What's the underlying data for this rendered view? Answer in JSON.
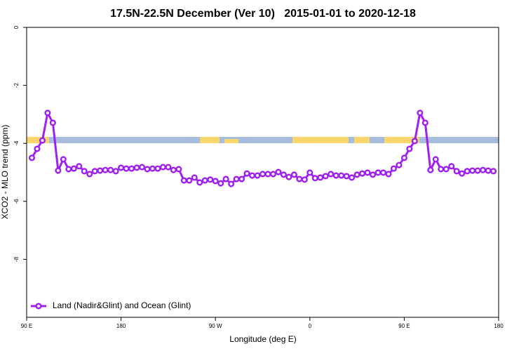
{
  "chart_data": {
    "type": "line",
    "title": "17.5N-22.5N December (Ver 10)   2015-01-01 to 2020-12-18",
    "xlabel": "Longitude (deg E)",
    "ylabel": "XCO2 - MLO trend (ppm)",
    "x": [
      95,
      100,
      105,
      110,
      115,
      120,
      125,
      130,
      135,
      140,
      145,
      150,
      155,
      160,
      165,
      170,
      175,
      180,
      185,
      190,
      195,
      200,
      205,
      210,
      215,
      220,
      225,
      230,
      235,
      240,
      245,
      250,
      255,
      260,
      265,
      270,
      275,
      280,
      285,
      290,
      295,
      300,
      305,
      310,
      315,
      320,
      325,
      330,
      335,
      340,
      345,
      350,
      355,
      360,
      365,
      370,
      375,
      380,
      385,
      390,
      395,
      400,
      405,
      410,
      415,
      420,
      425,
      430,
      435,
      440,
      445,
      450,
      455,
      460,
      465,
      470,
      475,
      480,
      485,
      490,
      495,
      500,
      505,
      510,
      515,
      520,
      525,
      530,
      535
    ],
    "series": [
      {
        "name": "Land (Nadir&Glint) and Ocean (Glint)",
        "color": "#a020f0",
        "values": [
          -4.5,
          -4.19,
          -3.9,
          -2.95,
          -3.29,
          -4.94,
          -4.55,
          -4.89,
          -4.87,
          -4.79,
          -4.96,
          -5.06,
          -4.96,
          -4.94,
          -4.92,
          -4.92,
          -4.96,
          -4.84,
          -4.87,
          -4.87,
          -4.84,
          -4.82,
          -4.89,
          -4.87,
          -4.87,
          -4.82,
          -4.82,
          -4.92,
          -4.89,
          -5.28,
          -5.28,
          -5.18,
          -5.35,
          -5.28,
          -5.25,
          -5.3,
          -5.38,
          -5.23,
          -5.4,
          -5.23,
          -5.23,
          -5.04,
          -5.11,
          -5.11,
          -5.06,
          -5.06,
          -5.06,
          -4.99,
          -5.08,
          -5.16,
          -5.08,
          -5.23,
          -5.25,
          -5.01,
          -5.2,
          -5.18,
          -5.13,
          -5.06,
          -5.11,
          -5.11,
          -5.13,
          -5.18,
          -5.08,
          -5.04,
          -5.01,
          -5.08,
          -5.01,
          -5.01,
          -5.06,
          -4.87,
          -4.75,
          -4.5,
          -4.19,
          -3.92,
          -2.95,
          -3.29,
          -4.92,
          -4.55,
          -4.89,
          -4.89,
          -4.79,
          -4.96,
          -5.04,
          -4.96,
          -4.94,
          -4.94,
          -4.92,
          -4.94,
          -4.96
        ]
      }
    ],
    "xlim": [
      90,
      540
    ],
    "xticks": [
      {
        "value": 90,
        "label": "90 E"
      },
      180,
      {
        "value": 270,
        "label": "90 W"
      },
      {
        "value": 360,
        "label": "0"
      },
      {
        "value": 450,
        "label": "90 E"
      },
      {
        "value": 540,
        "label": "180"
      }
    ],
    "ylim": [
      -10,
      0
    ],
    "yticks": [
      0,
      -2,
      -4,
      -6,
      -8
    ],
    "legend": "bottom-left"
  }
}
